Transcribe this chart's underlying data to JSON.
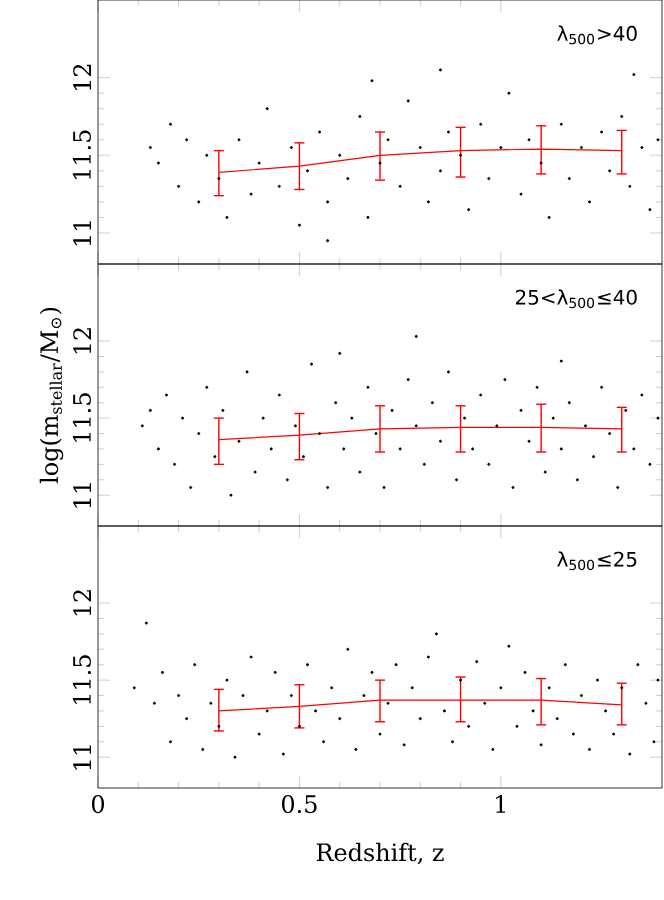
{
  "chart_data": [
    {
      "type": "scatter",
      "xlim": [
        0,
        1.4
      ],
      "ylim": [
        10.8,
        12.5
      ],
      "xticks": [
        0,
        0.5,
        1
      ],
      "yticks": [
        11,
        11.5,
        12
      ],
      "tick_labels": "y",
      "annotations": [
        "λ$_{500}$>40"
      ],
      "series": [
        {
          "color": "#000000",
          "marker": "circle",
          "x": [
            0.13,
            0.15,
            0.18,
            0.2,
            0.22,
            0.25,
            0.27,
            0.3,
            0.32,
            0.35,
            0.38,
            0.4,
            0.42,
            0.45,
            0.48,
            0.5,
            0.52,
            0.55,
            0.57,
            0.6,
            0.62,
            0.65,
            0.67,
            0.7,
            0.72,
            0.75,
            0.77,
            0.8,
            0.82,
            0.85,
            0.87,
            0.9,
            0.92,
            0.95,
            0.97,
            1.0,
            1.02,
            1.05,
            1.07,
            1.1,
            1.12,
            1.15,
            1.17,
            1.2,
            1.22,
            1.25,
            1.27,
            1.3,
            1.32,
            1.35,
            1.37,
            1.39,
            0.85,
            0.68,
            1.33,
            0.57
          ],
          "values": [
            11.55,
            11.45,
            11.7,
            11.3,
            11.6,
            11.2,
            11.5,
            11.35,
            11.1,
            11.6,
            11.25,
            11.45,
            11.8,
            11.3,
            11.55,
            11.05,
            11.4,
            11.65,
            11.2,
            11.5,
            11.35,
            11.75,
            11.1,
            11.45,
            11.6,
            11.3,
            11.85,
            11.55,
            11.2,
            11.4,
            11.65,
            11.5,
            11.15,
            11.7,
            11.35,
            11.55,
            11.9,
            11.25,
            11.6,
            11.45,
            11.1,
            11.7,
            11.35,
            11.55,
            11.2,
            11.65,
            11.4,
            11.75,
            11.3,
            11.55,
            11.15,
            11.6,
            12.05,
            11.98,
            12.02,
            10.95
          ]
        },
        {
          "type": "line",
          "color": "#ff0000",
          "marker": "none",
          "x": [
            0.3,
            0.5,
            0.7,
            0.9,
            1.1,
            1.3
          ],
          "values": [
            11.39,
            11.43,
            11.5,
            11.53,
            11.54,
            11.53
          ],
          "errors": [
            [
              11.24,
              11.53
            ],
            [
              11.28,
              11.58
            ],
            [
              11.34,
              11.65
            ],
            [
              11.36,
              11.68
            ],
            [
              11.38,
              11.69
            ],
            [
              11.38,
              11.66
            ]
          ]
        }
      ]
    },
    {
      "type": "scatter",
      "xlim": [
        0,
        1.4
      ],
      "ylim": [
        10.8,
        12.5
      ],
      "xticks": [
        0,
        0.5,
        1
      ],
      "yticks": [
        11,
        11.5,
        12
      ],
      "tick_labels": "y",
      "ylabel": "log(m$_{stellar}$/M$_{⊙}$)",
      "annotations": [
        "25<λ$_{500}$≤40"
      ],
      "series": [
        {
          "color": "#000000",
          "marker": "circle",
          "x": [
            0.11,
            0.13,
            0.15,
            0.17,
            0.19,
            0.21,
            0.23,
            0.25,
            0.27,
            0.29,
            0.31,
            0.33,
            0.35,
            0.37,
            0.39,
            0.41,
            0.43,
            0.45,
            0.47,
            0.49,
            0.51,
            0.53,
            0.55,
            0.57,
            0.59,
            0.61,
            0.63,
            0.65,
            0.67,
            0.69,
            0.71,
            0.73,
            0.75,
            0.77,
            0.79,
            0.81,
            0.83,
            0.85,
            0.87,
            0.89,
            0.91,
            0.93,
            0.95,
            0.97,
            0.99,
            1.01,
            1.03,
            1.05,
            1.07,
            1.09,
            1.11,
            1.13,
            1.15,
            1.17,
            1.19,
            1.21,
            1.23,
            1.25,
            1.27,
            1.29,
            1.31,
            1.33,
            1.35,
            1.37,
            1.39,
            0.79,
            0.6,
            1.15
          ],
          "values": [
            11.45,
            11.55,
            11.3,
            11.65,
            11.2,
            11.5,
            11.05,
            11.4,
            11.7,
            11.25,
            11.55,
            11.0,
            11.35,
            11.8,
            11.15,
            11.5,
            11.3,
            11.65,
            11.1,
            11.45,
            11.25,
            11.85,
            11.4,
            11.05,
            11.6,
            11.3,
            11.5,
            11.15,
            11.7,
            11.4,
            11.05,
            11.55,
            11.3,
            11.75,
            11.45,
            11.2,
            11.6,
            11.35,
            11.8,
            11.1,
            11.5,
            11.3,
            11.65,
            11.2,
            11.45,
            11.75,
            11.05,
            11.55,
            11.35,
            11.7,
            11.15,
            11.5,
            11.3,
            11.6,
            11.1,
            11.45,
            11.25,
            11.7,
            11.4,
            11.05,
            11.55,
            11.3,
            11.65,
            11.2,
            11.5,
            12.03,
            11.92,
            11.87
          ]
        },
        {
          "type": "line",
          "color": "#ff0000",
          "marker": "none",
          "x": [
            0.3,
            0.5,
            0.7,
            0.9,
            1.1,
            1.3
          ],
          "values": [
            11.36,
            11.39,
            11.43,
            11.44,
            11.44,
            11.43
          ],
          "errors": [
            [
              11.2,
              11.5
            ],
            [
              11.23,
              11.53
            ],
            [
              11.28,
              11.58
            ],
            [
              11.28,
              11.58
            ],
            [
              11.28,
              11.59
            ],
            [
              11.28,
              11.57
            ]
          ]
        }
      ]
    },
    {
      "type": "scatter",
      "xlim": [
        0,
        1.4
      ],
      "ylim": [
        10.8,
        12.5
      ],
      "xticks": [
        0,
        0.5,
        1
      ],
      "yticks": [
        11,
        11.5,
        12
      ],
      "xlabel": "Redshift, z",
      "annotations": [
        "λ$_{500}$≤25"
      ],
      "series": [
        {
          "color": "#000000",
          "marker": "circle",
          "x": [
            0.09,
            0.12,
            0.14,
            0.16,
            0.18,
            0.2,
            0.22,
            0.24,
            0.26,
            0.28,
            0.3,
            0.32,
            0.34,
            0.36,
            0.38,
            0.4,
            0.42,
            0.44,
            0.46,
            0.48,
            0.5,
            0.52,
            0.54,
            0.56,
            0.58,
            0.6,
            0.62,
            0.64,
            0.66,
            0.68,
            0.7,
            0.72,
            0.74,
            0.76,
            0.78,
            0.8,
            0.82,
            0.84,
            0.86,
            0.88,
            0.9,
            0.92,
            0.94,
            0.96,
            0.98,
            1.0,
            1.02,
            1.04,
            1.06,
            1.08,
            1.1,
            1.12,
            1.14,
            1.16,
            1.18,
            1.2,
            1.22,
            1.24,
            1.26,
            1.28,
            1.3,
            1.32,
            1.34,
            1.36,
            1.38,
            1.39
          ],
          "values": [
            11.45,
            11.87,
            11.35,
            11.55,
            11.1,
            11.4,
            11.25,
            11.6,
            11.05,
            11.35,
            11.2,
            11.5,
            11.0,
            11.4,
            11.65,
            11.15,
            11.3,
            11.55,
            11.02,
            11.4,
            11.2,
            11.6,
            11.3,
            11.1,
            11.45,
            11.25,
            11.7,
            11.05,
            11.4,
            11.55,
            11.15,
            11.35,
            11.6,
            11.08,
            11.45,
            11.25,
            11.65,
            11.8,
            11.3,
            11.1,
            11.5,
            11.2,
            11.62,
            11.35,
            11.05,
            11.45,
            11.72,
            11.2,
            11.55,
            11.3,
            11.08,
            11.45,
            11.25,
            11.6,
            11.15,
            11.4,
            11.05,
            11.5,
            11.3,
            11.15,
            11.45,
            11.02,
            11.6,
            11.35,
            11.1,
            11.5
          ]
        },
        {
          "type": "line",
          "color": "#ff0000",
          "marker": "none",
          "x": [
            0.3,
            0.5,
            0.7,
            0.9,
            1.1,
            1.3
          ],
          "values": [
            11.3,
            11.33,
            11.37,
            11.37,
            11.37,
            11.34
          ],
          "errors": [
            [
              11.17,
              11.44
            ],
            [
              11.19,
              11.47
            ],
            [
              11.23,
              11.5
            ],
            [
              11.23,
              11.52
            ],
            [
              11.21,
              11.51
            ],
            [
              11.21,
              11.48
            ]
          ]
        }
      ]
    }
  ]
}
